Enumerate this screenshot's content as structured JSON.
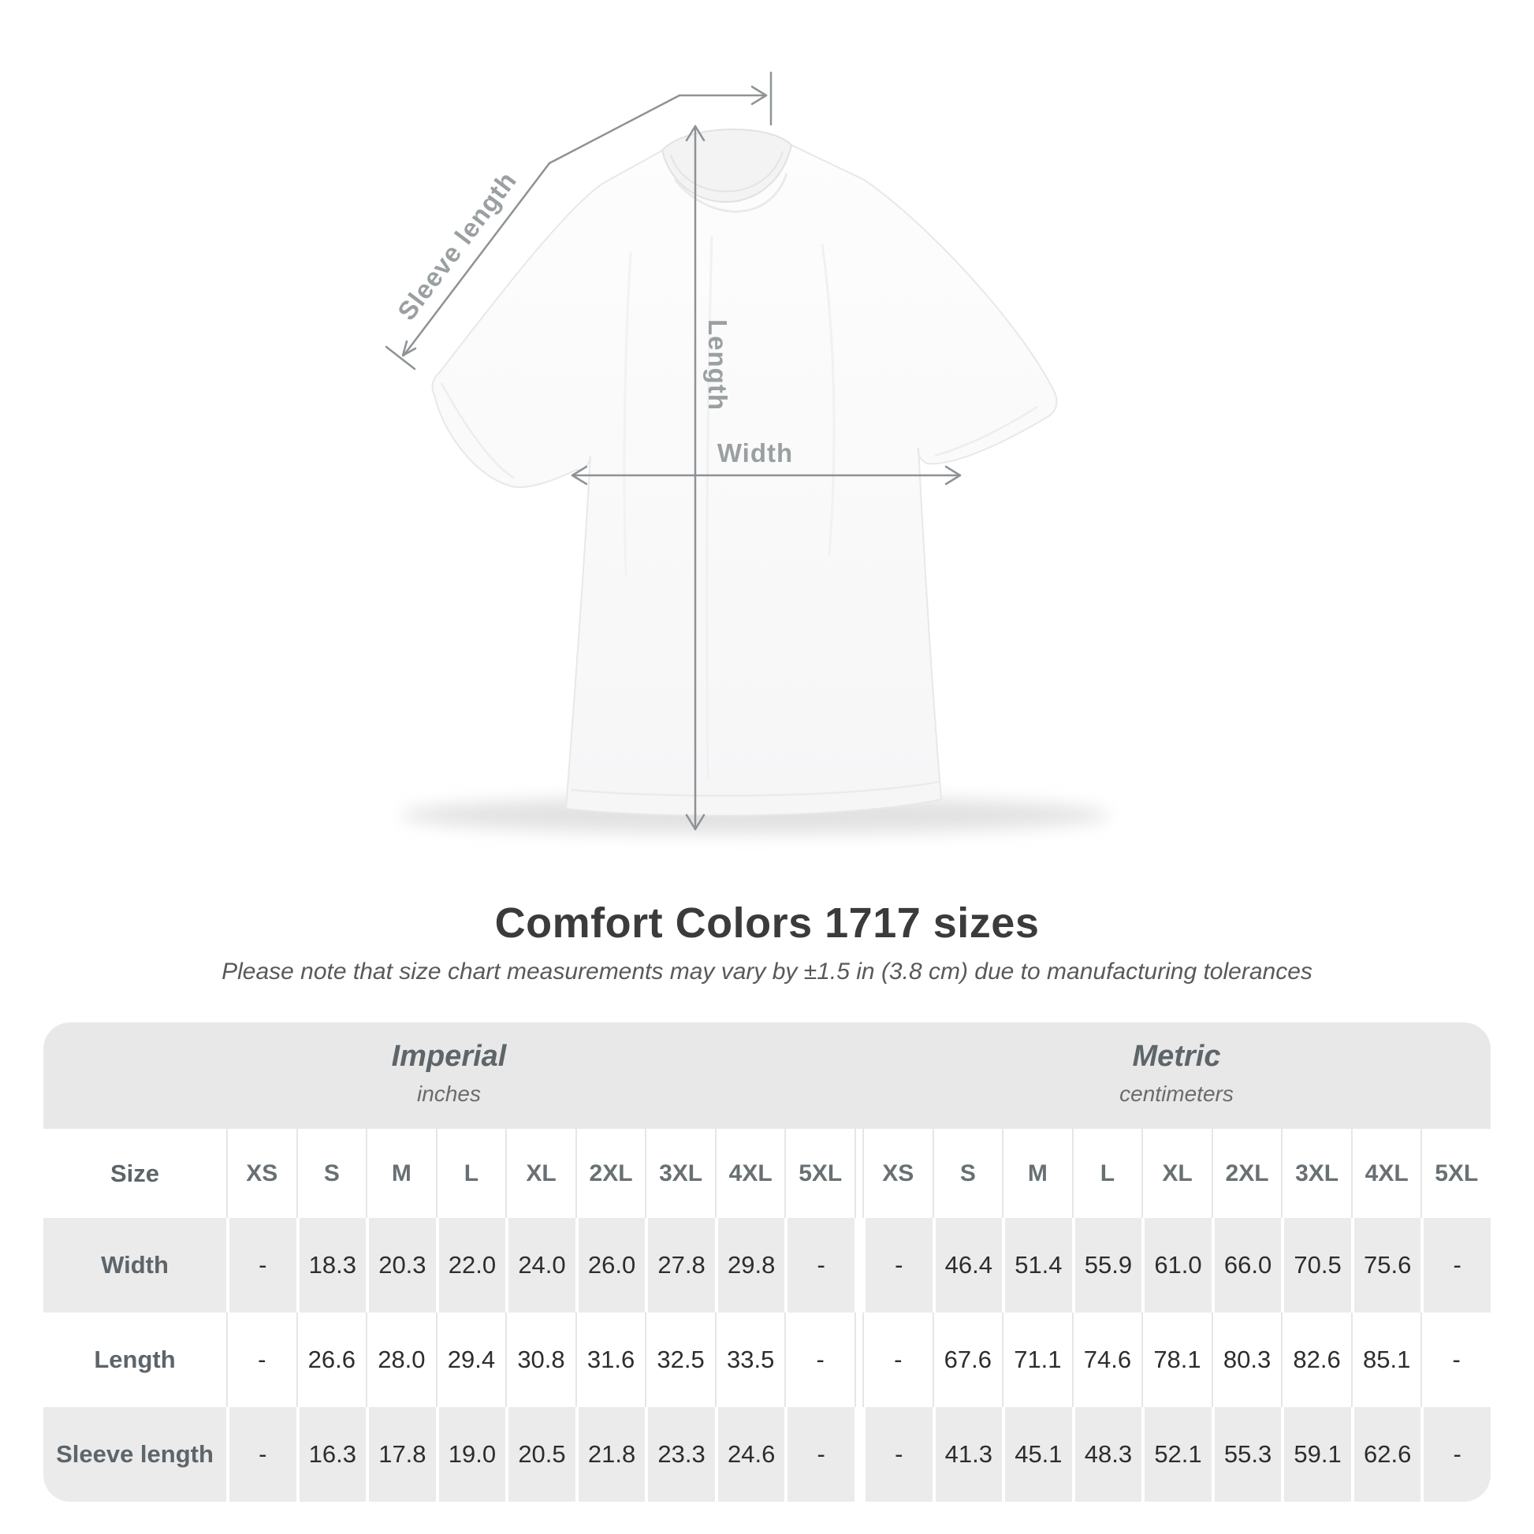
{
  "diagram": {
    "labels": {
      "sleeve_length": "Sleeve length",
      "length": "Length",
      "width": "Width"
    }
  },
  "title": "Comfort Colors 1717 sizes",
  "subtitle": "Please note that size chart measurements may vary by ±1.5 in (3.8 cm) due to manufacturing tolerances",
  "table": {
    "size_col_header": "Size",
    "sections": [
      {
        "name": "Imperial",
        "unit": "inches"
      },
      {
        "name": "Metric",
        "unit": "centimeters"
      }
    ],
    "size_headers_imperial": [
      "XS",
      "S",
      "M",
      "L",
      "XL",
      "2XL",
      "3XL",
      "4XL",
      "5XL"
    ],
    "size_headers_metric": [
      "XS",
      "S",
      "M",
      "L",
      "XL",
      "2XL",
      "3XL",
      "4XL",
      "5XL"
    ],
    "rows": [
      {
        "label": "Width",
        "imperial": [
          "-",
          "18.3",
          "20.3",
          "22.0",
          "24.0",
          "26.0",
          "27.8",
          "29.8",
          "-"
        ],
        "metric": [
          "-",
          "46.4",
          "51.4",
          "55.9",
          "61.0",
          "66.0",
          "70.5",
          "75.6",
          "-"
        ]
      },
      {
        "label": "Length",
        "imperial": [
          "-",
          "26.6",
          "28.0",
          "29.4",
          "30.8",
          "31.6",
          "32.5",
          "33.5",
          "-"
        ],
        "metric": [
          "-",
          "67.6",
          "71.1",
          "74.6",
          "78.1",
          "80.3",
          "82.6",
          "85.1",
          "-"
        ]
      },
      {
        "label": "Sleeve length",
        "imperial": [
          "-",
          "16.3",
          "17.8",
          "19.0",
          "20.5",
          "21.8",
          "23.3",
          "24.6",
          "-"
        ],
        "metric": [
          "-",
          "41.3",
          "45.1",
          "48.3",
          "52.1",
          "55.3",
          "59.1",
          "62.6",
          "-"
        ]
      }
    ]
  },
  "chart_data": {
    "type": "table",
    "title": "Comfort Colors 1717 sizes",
    "sections": [
      "Imperial (inches)",
      "Metric (centimeters)"
    ],
    "sizes": [
      "XS",
      "S",
      "M",
      "L",
      "XL",
      "2XL",
      "3XL",
      "4XL",
      "5XL"
    ],
    "rows": [
      {
        "measure": "Width",
        "imperial_in": [
          null,
          18.3,
          20.3,
          22.0,
          24.0,
          26.0,
          27.8,
          29.8,
          null
        ],
        "metric_cm": [
          null,
          46.4,
          51.4,
          55.9,
          61.0,
          66.0,
          70.5,
          75.6,
          null
        ]
      },
      {
        "measure": "Length",
        "imperial_in": [
          null,
          26.6,
          28.0,
          29.4,
          30.8,
          31.6,
          32.5,
          33.5,
          null
        ],
        "metric_cm": [
          null,
          67.6,
          71.1,
          74.6,
          78.1,
          80.3,
          82.6,
          85.1,
          null
        ]
      },
      {
        "measure": "Sleeve length",
        "imperial_in": [
          null,
          16.3,
          17.8,
          19.0,
          20.5,
          21.8,
          23.3,
          24.6,
          null
        ],
        "metric_cm": [
          null,
          41.3,
          45.1,
          48.3,
          52.1,
          55.3,
          59.1,
          62.6,
          null
        ]
      }
    ]
  },
  "colors": {
    "measure_line": "#8e9295",
    "measure_label": "#9aa0a2",
    "title_text": "#3b3b3b",
    "band_bg": "#e8e8e8",
    "row_stripe_bg": "#ebebeb"
  }
}
